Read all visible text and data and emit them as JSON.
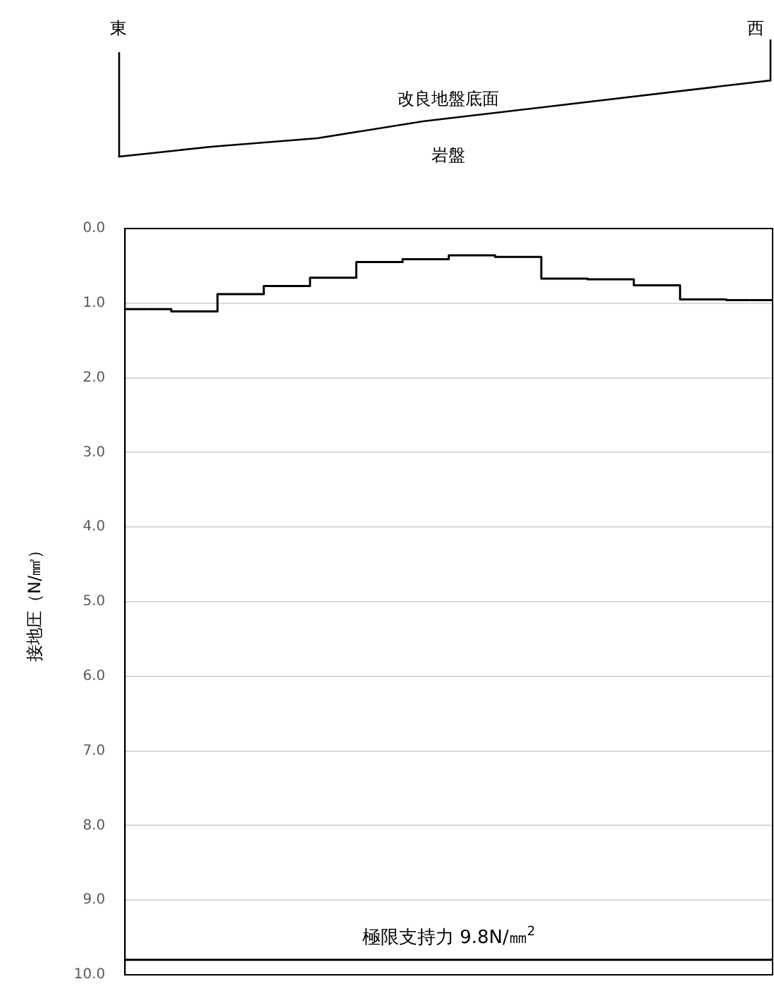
{
  "chart_data": {
    "type": "step",
    "ylabel": "接地圧（N/㎟）",
    "annotations": [
      "東",
      "西",
      "改良地盤底面",
      "岩盤"
    ],
    "categories": [
      null,
      null,
      null,
      null,
      null,
      null,
      null,
      null,
      null,
      null,
      null,
      null,
      null,
      null
    ],
    "values": [
      1.08,
      1.11,
      0.88,
      0.77,
      0.66,
      0.45,
      0.41,
      0.36,
      0.38,
      0.67,
      0.68,
      0.76,
      0.95,
      0.96
    ],
    "color": "#000000",
    "ylim": [
      10,
      0
    ],
    "yticks": [
      {
        "value": 0,
        "label": "0.0"
      },
      {
        "value": 1,
        "label": "1.0"
      },
      {
        "value": 2,
        "label": "2.0"
      },
      {
        "value": 3,
        "label": "3.0"
      },
      {
        "value": 4,
        "label": "4.0"
      },
      {
        "value": 5,
        "label": "5.0"
      },
      {
        "value": 6,
        "label": "6.0"
      },
      {
        "value": 7,
        "label": "7.0"
      },
      {
        "value": 8,
        "label": "8.0"
      },
      {
        "value": 9,
        "label": "9.0"
      },
      {
        "value": 10,
        "label": "10.0"
      }
    ],
    "grid": "y",
    "legend": false,
    "tick_labels": "y",
    "marker": "none",
    "ref_lines": [
      {
        "axis": "y",
        "value": 9.8,
        "label": "極限支持力 9.8N/㎜$^{2}$",
        "color": "#000000"
      }
    ]
  }
}
